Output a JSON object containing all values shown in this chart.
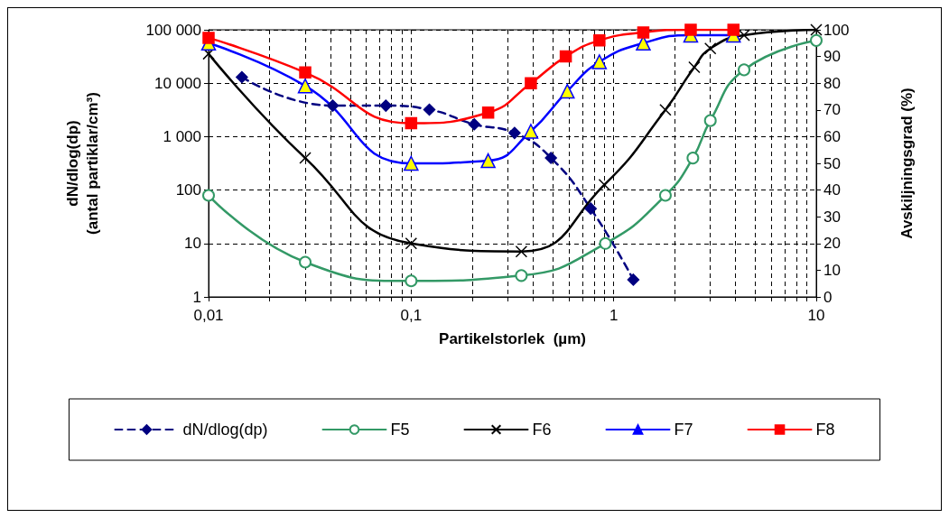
{
  "chart_data": {
    "type": "line",
    "xlabel": "Partikelstorlek  (µm)",
    "ylabel": "dN/dlog(dp)\n(antal partiklar/cm³)",
    "y2label": "Avskiljningsgrad (%)",
    "log": "xy",
    "xlim": [
      0.01,
      10
    ],
    "xticks": [
      {
        "value": 0.01,
        "label": "0,01"
      },
      {
        "value": 0.1,
        "label": "0,1"
      },
      1,
      10
    ],
    "ylim": [
      1,
      100000
    ],
    "yticks": [
      1,
      10,
      100,
      {
        "value": 1000,
        "label": "1 000"
      },
      {
        "value": 10000,
        "label": "10 000"
      },
      {
        "value": 100000,
        "label": "100 000"
      }
    ],
    "y2lim": [
      0,
      100
    ],
    "y2ticks": [
      0,
      10,
      20,
      30,
      40,
      50,
      60,
      70,
      80,
      90,
      100
    ],
    "grid": true,
    "legend": "bottom",
    "series": [
      {
        "name": "dN/dlog(dp)",
        "color": "#000080",
        "marker": "diamond",
        "line_style": "dashed",
        "x": [
          0.0146,
          0.041,
          0.075,
          0.123,
          0.205,
          0.324,
          0.49,
          0.77,
          1.25
        ],
        "values": [
          13000,
          3800,
          3800,
          3200,
          1700,
          1170,
          400,
          45,
          2.1
        ]
      },
      {
        "name": "F5",
        "color": "#339966",
        "marker": "circle",
        "axis": "y2",
        "x": [
          0.01,
          0.03,
          0.1,
          0.35,
          0.91,
          1.8,
          2.46,
          3.0,
          4.4,
          10
        ],
        "values": [
          38,
          13,
          6,
          8,
          20,
          38,
          52,
          66,
          85,
          96
        ]
      },
      {
        "name": "F6",
        "color": "#000000",
        "marker": "cross",
        "axis": "y2",
        "x": [
          0.01,
          0.03,
          0.1,
          0.35,
          0.9,
          1.8,
          2.5,
          3.0,
          4.4,
          10
        ],
        "values": [
          91,
          52,
          20,
          17,
          42,
          70,
          86,
          93,
          98,
          100
        ]
      },
      {
        "name": "F7",
        "color": "#0000ff",
        "colors": [
          "#ffff00",
          "#ffff00",
          "#ffff00",
          "#ffff00",
          "#ffff00",
          "#ffff00",
          "#ffff00",
          "#ffff00",
          "#ffff00",
          "#ffff00"
        ],
        "marker": "triangle",
        "axis": "y2",
        "x": [
          0.01,
          0.03,
          0.1,
          0.24,
          0.39,
          0.59,
          0.85,
          1.4,
          2.4,
          3.9
        ],
        "values": [
          95,
          79,
          50,
          51,
          62,
          77,
          88,
          95,
          98,
          98
        ]
      },
      {
        "name": "F8",
        "color": "#ff0000",
        "marker": "square",
        "axis": "y2",
        "x": [
          0.01,
          0.03,
          0.1,
          0.24,
          0.39,
          0.58,
          0.85,
          1.4,
          2.4,
          3.9
        ],
        "values": [
          97,
          84,
          65,
          69,
          80,
          90,
          96,
          99,
          100,
          100
        ]
      }
    ]
  }
}
